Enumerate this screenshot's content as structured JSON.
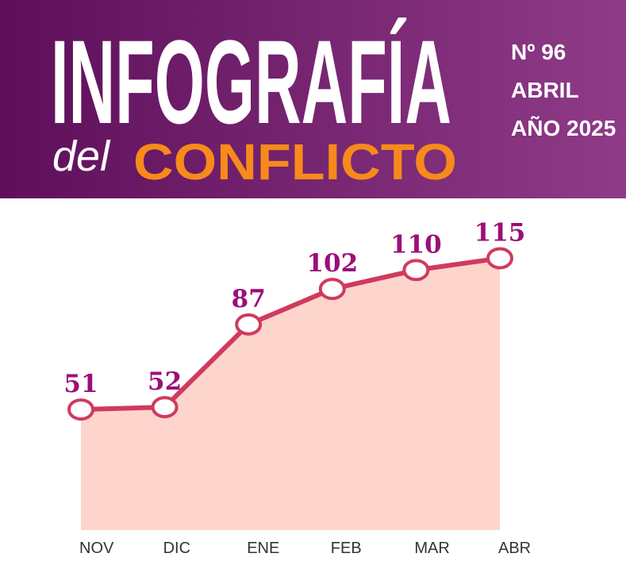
{
  "header": {
    "title": "INFOGRAFÍA",
    "subtitle_small": "del",
    "subtitle": "CONFLICTO",
    "issue": "Nº 96",
    "month": "ABRIL",
    "year": "AÑO 2025"
  },
  "chart_data": {
    "type": "area",
    "categories": [
      "NOV",
      "DIC",
      "ENE",
      "FEB",
      "MAR",
      "ABR"
    ],
    "values": [
      51,
      52,
      87,
      102,
      110,
      115
    ],
    "ylim": [
      0,
      140
    ],
    "color": "#d03a5f",
    "fill": "#fdd5cc",
    "label_color": "#9b0f7a"
  }
}
